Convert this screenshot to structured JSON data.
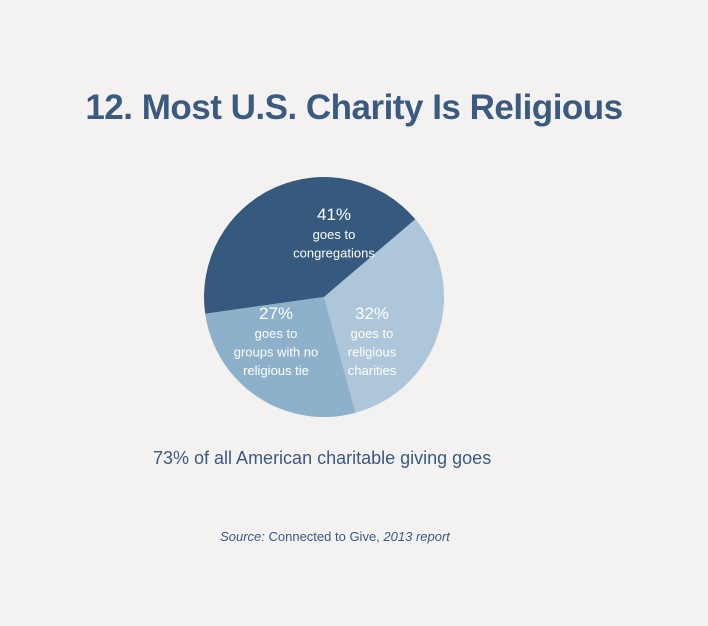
{
  "title": "12. Most U.S. Charity Is Religious",
  "caption": "73% of all American charitable giving goes",
  "source": {
    "prefix": "Source:",
    "name": "Connected to Give,",
    "suffix": "2013 report"
  },
  "chart_data": {
    "type": "pie",
    "title": "12. Most U.S. Charity Is Religious",
    "slices": [
      {
        "value": 41,
        "percent_label": "41%",
        "label_lines": [
          "goes to",
          "congregations"
        ],
        "color": "#365a7e"
      },
      {
        "value": 32,
        "percent_label": "32%",
        "label_lines": [
          "goes to",
          "religious",
          "charities"
        ],
        "color": "#adc6da"
      },
      {
        "value": 27,
        "percent_label": "27%",
        "label_lines": [
          "goes to",
          "groups with no",
          "religious tie"
        ],
        "color": "#8db1ca"
      }
    ]
  }
}
